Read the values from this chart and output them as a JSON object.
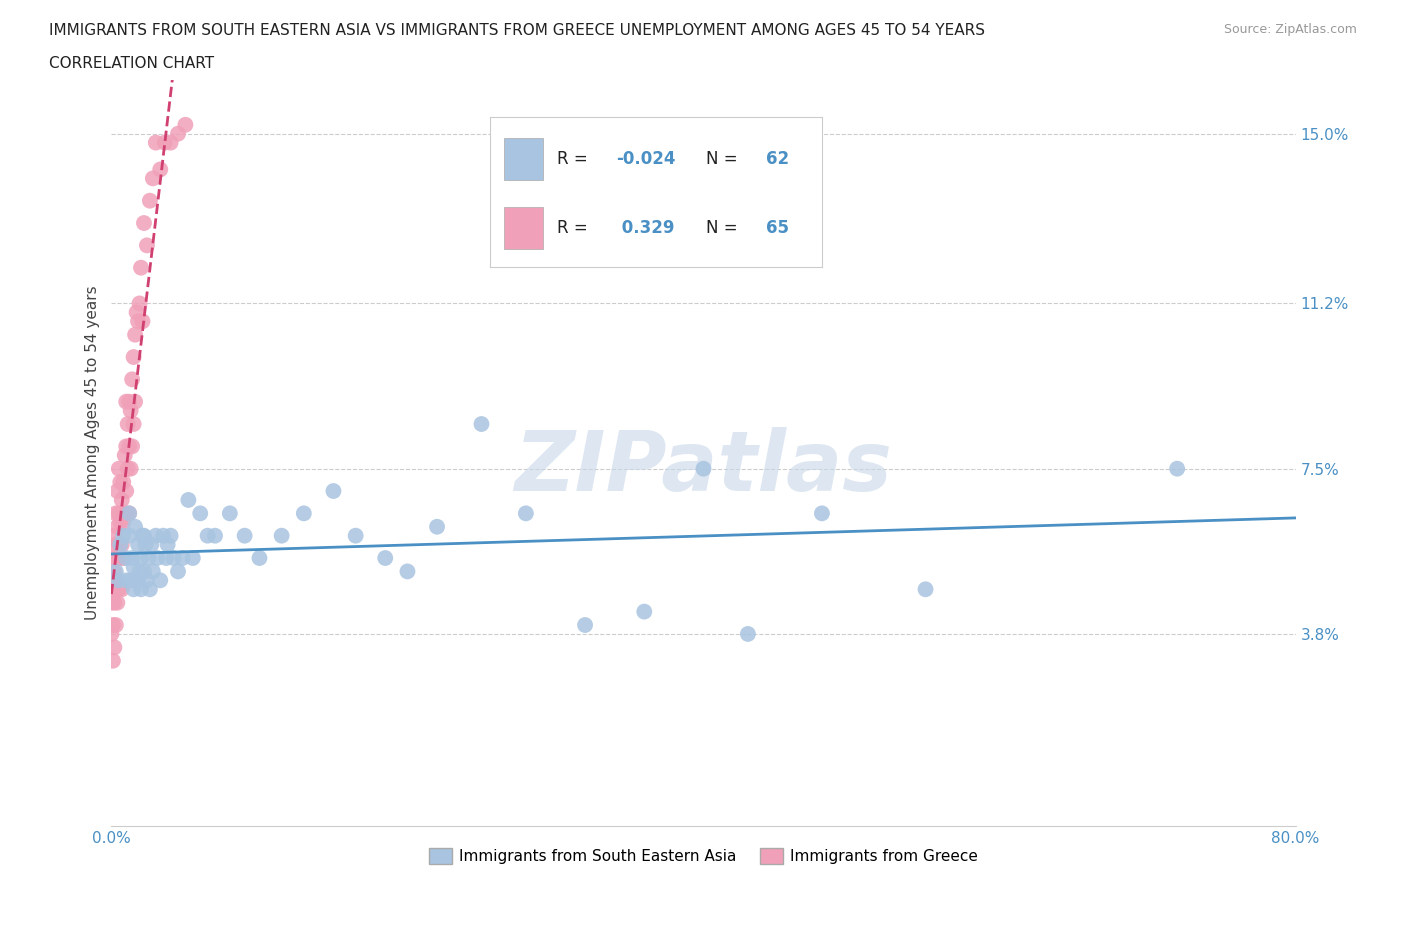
{
  "title_line1": "IMMIGRANTS FROM SOUTH EASTERN ASIA VS IMMIGRANTS FROM GREECE UNEMPLOYMENT AMONG AGES 45 TO 54 YEARS",
  "title_line2": "CORRELATION CHART",
  "source_text": "Source: ZipAtlas.com",
  "ylabel": "Unemployment Among Ages 45 to 54 years",
  "xlim": [
    0.0,
    0.8
  ],
  "ylim": [
    -0.005,
    0.162
  ],
  "xticks": [
    0.0,
    0.1,
    0.2,
    0.3,
    0.4,
    0.5,
    0.6,
    0.7,
    0.8
  ],
  "xticklabels": [
    "0.0%",
    "",
    "",
    "",
    "",
    "",
    "",
    "",
    "80.0%"
  ],
  "ytick_positions": [
    0.038,
    0.075,
    0.112,
    0.15
  ],
  "ytick_labels": [
    "3.8%",
    "7.5%",
    "11.2%",
    "15.0%"
  ],
  "blue_color": "#a8c4e0",
  "pink_color": "#f0a0b8",
  "blue_line_color": "#4a90c4",
  "pink_line_color": "#d04070",
  "R_blue": -0.024,
  "N_blue": 62,
  "R_pink": 0.329,
  "N_pink": 65,
  "watermark": "ZIPatlas",
  "legend_label_blue": "Immigrants from South Eastern Asia",
  "legend_label_pink": "Immigrants from Greece",
  "background_color": "#ffffff",
  "grid_color": "#cccccc",
  "blue_scatter_x": [
    0.003,
    0.005,
    0.006,
    0.008,
    0.01,
    0.01,
    0.012,
    0.012,
    0.013,
    0.014,
    0.015,
    0.015,
    0.016,
    0.017,
    0.018,
    0.018,
    0.019,
    0.02,
    0.02,
    0.021,
    0.022,
    0.022,
    0.023,
    0.024,
    0.025,
    0.026,
    0.027,
    0.028,
    0.03,
    0.031,
    0.033,
    0.035,
    0.037,
    0.038,
    0.04,
    0.042,
    0.045,
    0.048,
    0.052,
    0.055,
    0.06,
    0.065,
    0.07,
    0.08,
    0.09,
    0.1,
    0.115,
    0.13,
    0.15,
    0.165,
    0.185,
    0.2,
    0.22,
    0.25,
    0.28,
    0.32,
    0.36,
    0.4,
    0.43,
    0.48,
    0.55,
    0.72
  ],
  "blue_scatter_y": [
    0.052,
    0.05,
    0.058,
    0.06,
    0.055,
    0.05,
    0.06,
    0.065,
    0.05,
    0.055,
    0.048,
    0.053,
    0.062,
    0.05,
    0.058,
    0.05,
    0.052,
    0.055,
    0.048,
    0.06,
    0.052,
    0.06,
    0.058,
    0.05,
    0.055,
    0.048,
    0.058,
    0.052,
    0.06,
    0.055,
    0.05,
    0.06,
    0.055,
    0.058,
    0.06,
    0.055,
    0.052,
    0.055,
    0.068,
    0.055,
    0.065,
    0.06,
    0.06,
    0.065,
    0.06,
    0.055,
    0.06,
    0.065,
    0.07,
    0.06,
    0.055,
    0.052,
    0.062,
    0.085,
    0.065,
    0.04,
    0.043,
    0.075,
    0.038,
    0.065,
    0.048,
    0.075
  ],
  "pink_scatter_x": [
    0.0,
    0.0,
    0.0,
    0.001,
    0.001,
    0.001,
    0.001,
    0.002,
    0.002,
    0.002,
    0.002,
    0.003,
    0.003,
    0.003,
    0.003,
    0.004,
    0.004,
    0.004,
    0.004,
    0.005,
    0.005,
    0.005,
    0.005,
    0.006,
    0.006,
    0.006,
    0.007,
    0.007,
    0.007,
    0.008,
    0.008,
    0.008,
    0.009,
    0.009,
    0.01,
    0.01,
    0.01,
    0.011,
    0.011,
    0.012,
    0.012,
    0.012,
    0.013,
    0.013,
    0.014,
    0.014,
    0.015,
    0.015,
    0.016,
    0.016,
    0.017,
    0.018,
    0.019,
    0.02,
    0.021,
    0.022,
    0.024,
    0.026,
    0.028,
    0.03,
    0.033,
    0.036,
    0.04,
    0.045,
    0.05
  ],
  "pink_scatter_y": [
    0.05,
    0.045,
    0.038,
    0.055,
    0.048,
    0.04,
    0.032,
    0.06,
    0.052,
    0.045,
    0.035,
    0.065,
    0.058,
    0.05,
    0.04,
    0.07,
    0.062,
    0.055,
    0.045,
    0.075,
    0.065,
    0.058,
    0.048,
    0.072,
    0.063,
    0.055,
    0.068,
    0.058,
    0.048,
    0.072,
    0.063,
    0.055,
    0.078,
    0.065,
    0.09,
    0.08,
    0.07,
    0.085,
    0.075,
    0.09,
    0.08,
    0.065,
    0.088,
    0.075,
    0.095,
    0.08,
    0.1,
    0.085,
    0.105,
    0.09,
    0.11,
    0.108,
    0.112,
    0.12,
    0.108,
    0.13,
    0.125,
    0.135,
    0.14,
    0.148,
    0.142,
    0.148,
    0.148,
    0.15,
    0.152
  ]
}
